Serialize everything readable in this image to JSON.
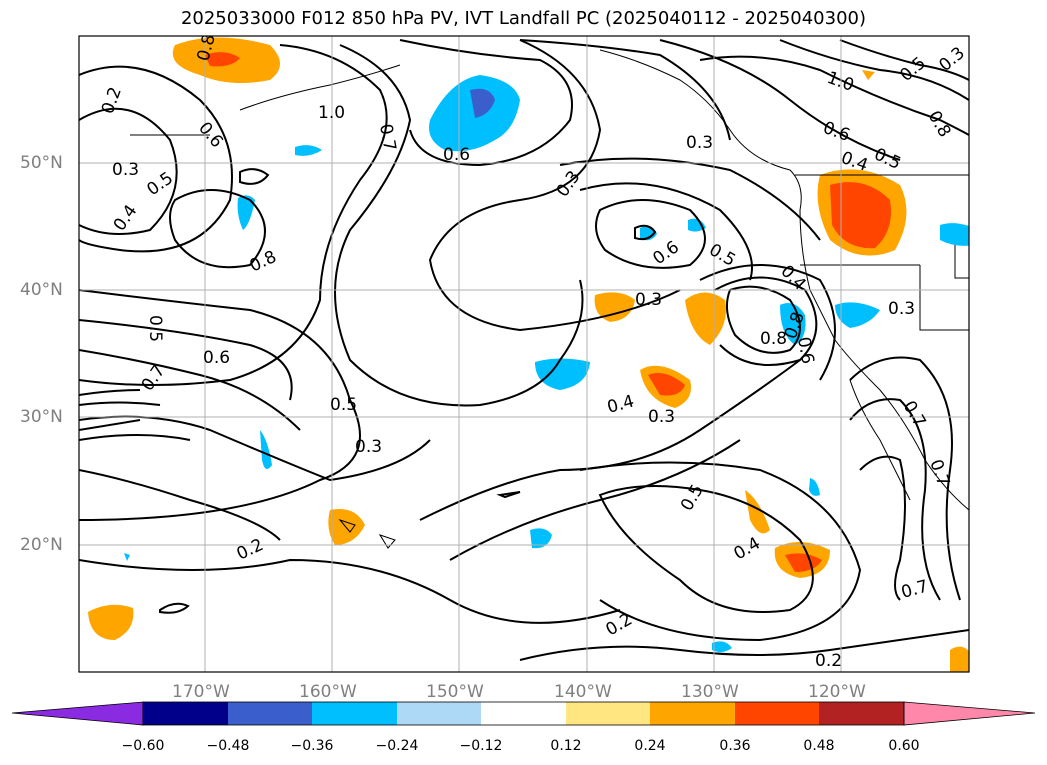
{
  "title": "2025033000 F012 850 hPa PV, IVT Landfall PC (2025040112 - 2025040300)",
  "lon_labels": [
    "170°W",
    "160°W",
    "150°W",
    "140°W",
    "130°W",
    "120°W"
  ],
  "lat_labels": [
    "50°N",
    "40°N",
    "30°N",
    "20°N"
  ],
  "colorbar": {
    "ticks": [
      "−0.60",
      "−0.48",
      "−0.36",
      "−0.24",
      "−0.12",
      "0.12",
      "0.24",
      "0.36",
      "0.48",
      "0.60"
    ],
    "colors": [
      "#8a2be2",
      "#00008b",
      "#3a5fcd",
      "#00bfff",
      "#add8f6",
      "#ffffff",
      "#ffe680",
      "#ffa500",
      "#ff4500",
      "#b22222",
      "#ff88aa"
    ]
  },
  "contour_labels": [
    "0.2",
    "0.3",
    "0.4",
    "0.5",
    "0.6",
    "0.7",
    "0.8",
    "1.0"
  ],
  "map_labels": {
    "c1": "0.2",
    "c2": "0.6",
    "c3": "1.0",
    "c4": "0.7",
    "c5": "0.3",
    "c6": "0.4",
    "c7": "0.5",
    "c8": "0.8",
    "c9": "0.6",
    "c10": "0.6",
    "c11": "0.8",
    "c12": "0.5",
    "c13": "0.6",
    "c14": "0.7",
    "c15": "0.5",
    "c16": "0.3",
    "c17": "0.3",
    "c18": "0.6",
    "c19": "0.5",
    "c20": "0.3",
    "c21": "0.4",
    "c22": "0.3",
    "c23": "0.3",
    "c24": "0.4",
    "c25": "0.8",
    "c26": "0.5",
    "c27": "0.2",
    "c28": "0.2",
    "c29": "0.2",
    "c30": "0.5",
    "c31": "0.4",
    "c32": "0.7",
    "c33": "0.7",
    "c34": "1.0",
    "c35": "0.5",
    "c36": "0.8",
    "c37": "0.6",
    "c38": "0.5",
    "c39": "0.4",
    "c40": "0.3",
    "c41": "0.7",
    "c42": "0.3",
    "c43": "0.8",
    "c44": "0.6"
  }
}
